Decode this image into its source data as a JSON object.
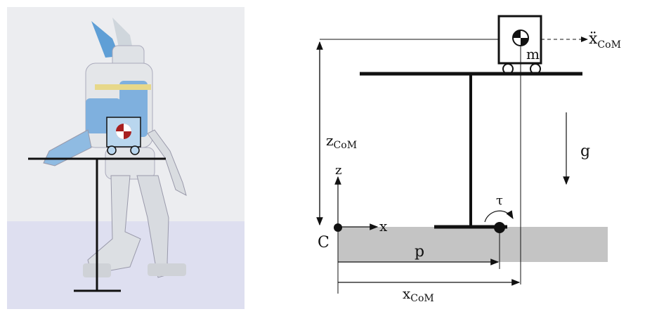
{
  "left_panel": {
    "description_kind": "humanoid robot with cart-table model overlay"
  },
  "right_panel": {
    "labels": {
      "acc": "ẍ",
      "acc_sub": "CoM",
      "mass": "m",
      "height": "z",
      "height_sub": "CoM",
      "gravity": "g",
      "z_axis": "z",
      "x_axis": "x",
      "origin": "C",
      "zmp": "p",
      "torque": "τ",
      "com_x": "x",
      "com_x_sub": "CoM"
    }
  },
  "colors": {
    "cart_fill": "#b9d6ee",
    "com_marker": "#a82020",
    "ground": "#c4c4c4",
    "ink": "#111111"
  }
}
